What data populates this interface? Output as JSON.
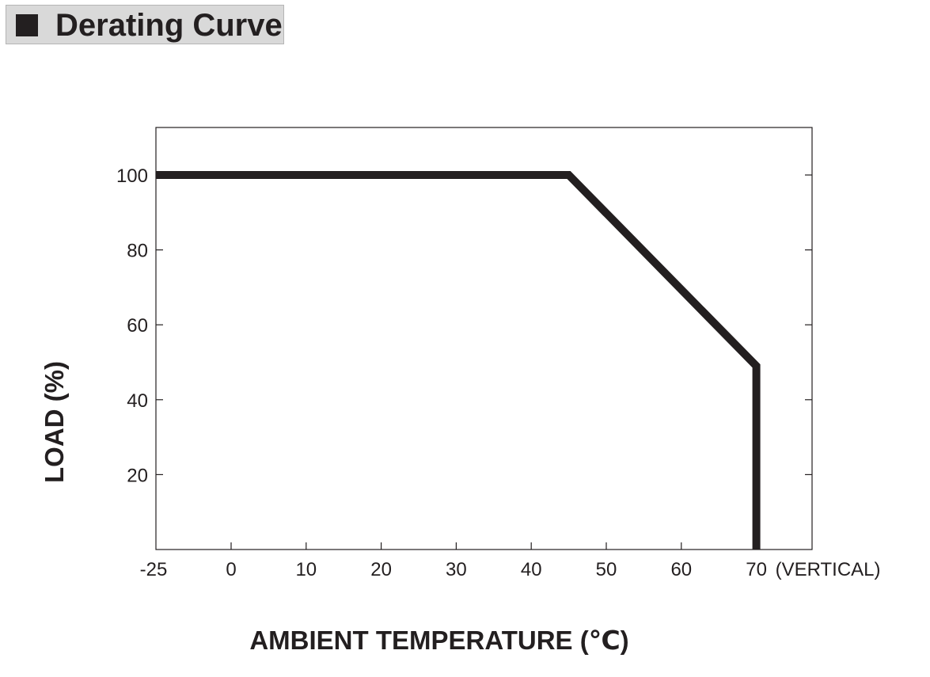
{
  "header": {
    "title": "Derating Curve"
  },
  "chart_data": {
    "type": "line",
    "title": "Derating Curve",
    "xlabel": "AMBIENT TEMPERATURE (℃)",
    "ylabel": "LOAD (%)",
    "xlim": [
      -25,
      75
    ],
    "ylim": [
      0,
      112
    ],
    "x_ticks": [
      -25,
      0,
      10,
      20,
      30,
      40,
      50,
      60,
      70
    ],
    "x_tick_labels": [
      "-25",
      "0",
      "10",
      "20",
      "30",
      "40",
      "50",
      "60",
      "70"
    ],
    "x_tick_suffix": "(VERTICAL)",
    "y_ticks": [
      20,
      40,
      60,
      80,
      100
    ],
    "y_tick_labels": [
      "20",
      "40",
      "60",
      "80",
      "100"
    ],
    "grid": false,
    "series": [
      {
        "x": [
          -25,
          45,
          70,
          70
        ],
        "y": [
          100,
          100,
          49,
          0
        ]
      }
    ],
    "line_color": "#231f20"
  }
}
